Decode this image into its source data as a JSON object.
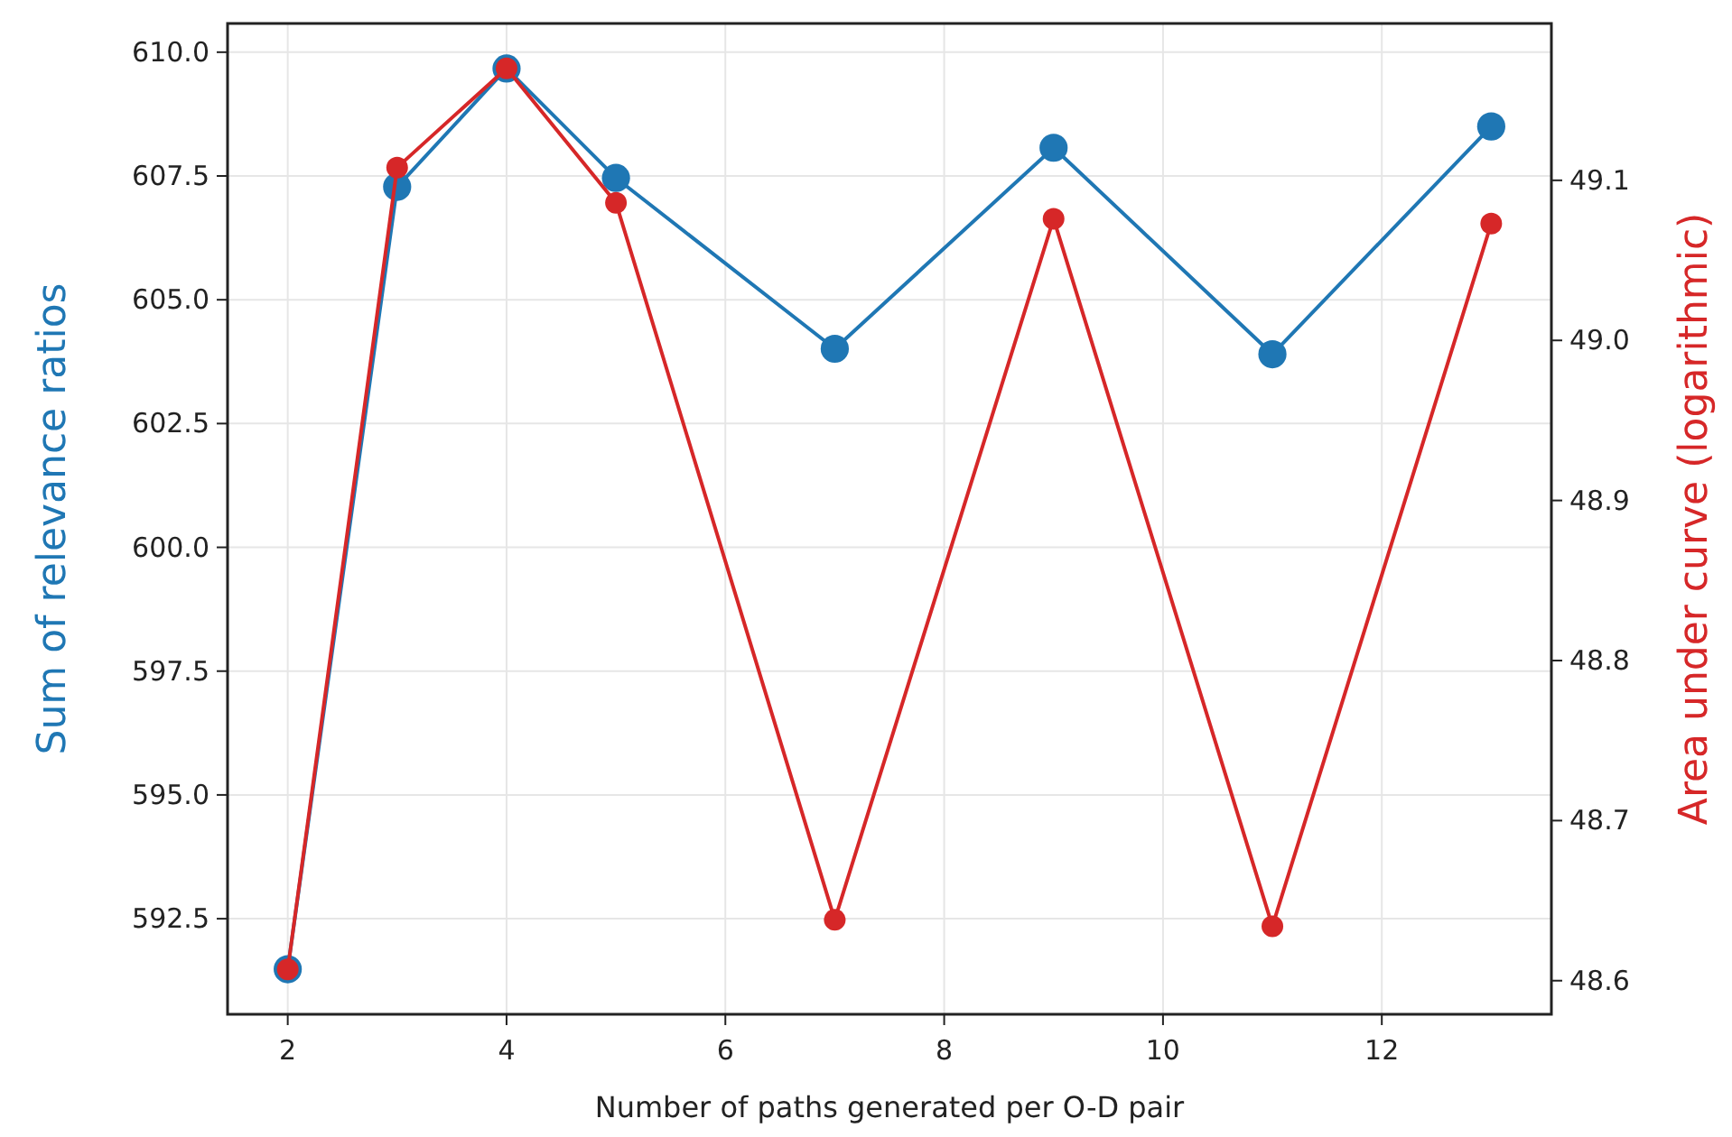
{
  "chart_data": {
    "type": "line",
    "xlabel": "Number of paths generated per O-D pair",
    "ylabel": "Sum of relevance ratios",
    "y2label": "Area under curve (logarithmic)",
    "x": [
      2,
      3,
      4,
      5,
      7,
      9,
      11,
      13
    ],
    "series": [
      {
        "color": "#1f77b4",
        "values": [
          591.48,
          607.28,
          609.67,
          607.46,
          604.01,
          608.07,
          603.9,
          608.5
        ]
      },
      {
        "color": "#d62728",
        "axis": "y2",
        "values": [
          48.607,
          49.108,
          49.17,
          49.086,
          48.638,
          49.076,
          48.634,
          49.073
        ]
      }
    ],
    "xlim": [
      1.45,
      13.55
    ],
    "xticks": [
      2,
      4,
      6,
      8,
      10,
      12
    ],
    "ylim": [
      590.57,
      610.58
    ],
    "yticks": [
      {
        "value": 592.5,
        "label": "592.5"
      },
      {
        "value": 595,
        "label": "595.0"
      },
      {
        "value": 597.5,
        "label": "597.5"
      },
      {
        "value": 600,
        "label": "600.0"
      },
      {
        "value": 602.5,
        "label": "602.5"
      },
      {
        "value": 605,
        "label": "605.0"
      },
      {
        "value": 607.5,
        "label": "607.5"
      },
      {
        "value": 610,
        "label": "610.0"
      }
    ],
    "y2lim": [
      48.579,
      49.198
    ],
    "y2ticks": [
      48.6,
      48.7,
      48.8,
      48.9,
      {
        "value": 49,
        "label": "49.0"
      },
      49.1
    ],
    "grid": true,
    "marker": "circle",
    "line_style": "solid"
  }
}
